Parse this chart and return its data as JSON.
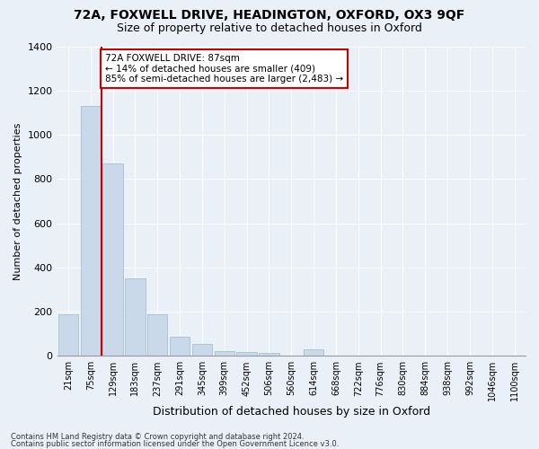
{
  "title1": "72A, FOXWELL DRIVE, HEADINGTON, OXFORD, OX3 9QF",
  "title2": "Size of property relative to detached houses in Oxford",
  "xlabel": "Distribution of detached houses by size in Oxford",
  "ylabel": "Number of detached properties",
  "categories": [
    "21sqm",
    "75sqm",
    "129sqm",
    "183sqm",
    "237sqm",
    "291sqm",
    "345sqm",
    "399sqm",
    "452sqm",
    "506sqm",
    "560sqm",
    "614sqm",
    "668sqm",
    "722sqm",
    "776sqm",
    "830sqm",
    "884sqm",
    "938sqm",
    "992sqm",
    "1046sqm",
    "1100sqm"
  ],
  "values": [
    190,
    1130,
    870,
    350,
    190,
    88,
    53,
    22,
    18,
    15,
    0,
    28,
    0,
    0,
    0,
    0,
    0,
    0,
    0,
    0,
    0
  ],
  "bar_color": "#c9d9ea",
  "bar_edge_color": "#a8bece",
  "vline_color": "#cc0000",
  "vline_x": 1.5,
  "annotation_text": "72A FOXWELL DRIVE: 87sqm\n← 14% of detached houses are smaller (409)\n85% of semi-detached houses are larger (2,483) →",
  "annotation_box_color": "#ffffff",
  "annotation_box_edge": "#cc0000",
  "ylim": [
    0,
    1400
  ],
  "yticks": [
    0,
    200,
    400,
    600,
    800,
    1000,
    1200,
    1400
  ],
  "footer1": "Contains HM Land Registry data © Crown copyright and database right 2024.",
  "footer2": "Contains public sector information licensed under the Open Government Licence v3.0.",
  "bg_color": "#eaf0f8",
  "plot_bg_color": "#eaf0f8",
  "grid_color": "#ffffff",
  "title1_fontsize": 10,
  "title2_fontsize": 9,
  "xlabel_fontsize": 9,
  "ylabel_fontsize": 8,
  "annot_fontsize": 7.5,
  "tick_fontsize": 7,
  "ytick_fontsize": 8
}
